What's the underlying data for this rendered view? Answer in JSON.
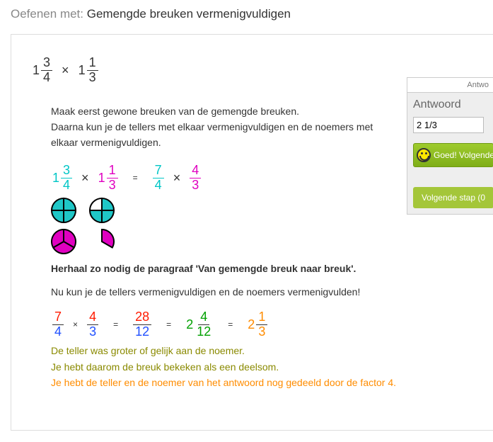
{
  "header": {
    "prefix": "Oefenen met:",
    "title": "Gemengde breuken vermenigvuldigen"
  },
  "problem": {
    "a": {
      "w": "1",
      "n": "3",
      "d": "4"
    },
    "b": {
      "w": "1",
      "n": "1",
      "d": "3"
    }
  },
  "text": {
    "intro1": "Maak eerst gewone breuken van de gemengde breuken.",
    "intro2": "Daarna kun je de tellers met elkaar vermenigvuldigen en de noemers met elkaar vermenigvuldigen.",
    "repeat": "Herhaal zo nodig de paragraaf 'Van gemengde breuk naar breuk'.",
    "now": "Nu kun je de tellers vermenigvuldigen en de noemers vermenigvulden!",
    "olive1": "De teller was groter of gelijk aan de noemer.",
    "olive2": "Je hebt daarom de breuk bekeken als een deelsom.",
    "orange": "Je hebt de teller en de noemer van het antwoord nog gedeeld door de factor 4."
  },
  "step1": {
    "left_a": {
      "w": "1",
      "n": "3",
      "d": "4",
      "wc": "c-cyan",
      "nc": "c-cyan",
      "dc": "c-cyan"
    },
    "left_b": {
      "w": "1",
      "n": "1",
      "d": "3",
      "wc": "c-mag",
      "nc": "c-mag",
      "dc": "c-mag"
    },
    "right_a": {
      "n": "7",
      "d": "4",
      "nc": "c-cyan",
      "dc": "c-cyan"
    },
    "right_b": {
      "n": "4",
      "d": "3",
      "nc": "c-mag",
      "dc": "c-mag"
    }
  },
  "pies": {
    "cyan_color": "#1fc7c7",
    "mag_color": "#e000c0",
    "cyan_full": 4,
    "cyan_partial": {
      "slices": 4,
      "filled": 3
    },
    "mag_full": 3,
    "mag_partial": {
      "slices": 3,
      "filled": 1
    }
  },
  "step2": {
    "a": {
      "n": "7",
      "d": "4",
      "nc": "c-red",
      "dc": "c-blue"
    },
    "b": {
      "n": "4",
      "d": "3",
      "nc": "c-red",
      "dc": "c-blue"
    },
    "prod": {
      "n": "28",
      "d": "12",
      "nc": "c-red",
      "dc": "c-blue"
    },
    "mix1": {
      "w": "2",
      "n": "4",
      "d": "12",
      "wc": "c-grn",
      "nc": "c-grn",
      "dc": "c-grn"
    },
    "mix2": {
      "w": "2",
      "n": "1",
      "d": "3",
      "wc": "c-org",
      "nc": "c-org",
      "dc": "c-org"
    }
  },
  "sidebar": {
    "tab": "Antwo",
    "title": "Antwoord",
    "answer_value": "2 1/3",
    "good": "Goed! Volgende v",
    "next": "Volgende stap (0"
  }
}
